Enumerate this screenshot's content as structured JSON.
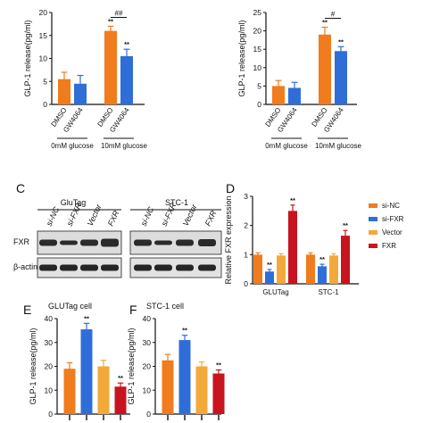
{
  "colors": {
    "orange": "#F07C1E",
    "blue": "#2F6ED8",
    "yellow": "#F2A93A",
    "red": "#C8141E",
    "dark": "#1a1a1a"
  },
  "chart_data": [
    {
      "id": "A",
      "type": "bar",
      "ylabel": "GLP-1 release(pg/ml)",
      "ylim": [
        0,
        20
      ],
      "yticks": [
        0,
        5,
        10,
        15,
        20
      ],
      "categories": [
        "DMSO",
        "GW4064",
        "DMSO",
        "GW4064"
      ],
      "groups": [
        "0mM glucose",
        "10mM glucose"
      ],
      "values": [
        5.5,
        4.5,
        16,
        10.5
      ],
      "errors": [
        1.5,
        1.8,
        1.0,
        1.5
      ],
      "bar_colors": [
        "orange",
        "blue",
        "orange",
        "blue"
      ],
      "sig": [
        "",
        "",
        "**",
        "**"
      ],
      "bracket_label": "##"
    },
    {
      "id": "B",
      "type": "bar",
      "ylabel": "GLP-1 release(pg/ml)",
      "ylim": [
        0,
        25
      ],
      "yticks": [
        0,
        5,
        10,
        15,
        20,
        25
      ],
      "categories": [
        "DMSO",
        "GW4064",
        "DMSO",
        "GW4064"
      ],
      "groups": [
        "0mM glucose",
        "10mM glucose"
      ],
      "values": [
        5,
        4.5,
        19,
        14.5
      ],
      "errors": [
        1.5,
        1.5,
        2.0,
        1.2
      ],
      "bar_colors": [
        "orange",
        "blue",
        "orange",
        "blue"
      ],
      "sig": [
        "",
        "",
        "**",
        "**"
      ],
      "bracket_label": "#"
    },
    {
      "id": "D",
      "type": "bar",
      "ylabel": "Relative FXR expression",
      "ylim": [
        0,
        3
      ],
      "yticks": [
        0,
        1,
        2,
        3
      ],
      "groups": [
        "GLUTag",
        "STC-1"
      ],
      "series": [
        {
          "name": "si-NC",
          "values": [
            1.0,
            1.0
          ],
          "errors": [
            0.06,
            0.06
          ],
          "color": "orange",
          "sig": [
            "",
            ""
          ]
        },
        {
          "name": "si-FXR",
          "values": [
            0.42,
            0.6
          ],
          "errors": [
            0.07,
            0.07
          ],
          "color": "blue",
          "sig": [
            "**",
            "**"
          ]
        },
        {
          "name": "Vector",
          "values": [
            0.97,
            0.97
          ],
          "errors": [
            0.06,
            0.06
          ],
          "color": "yellow",
          "sig": [
            "",
            ""
          ]
        },
        {
          "name": "FXR",
          "values": [
            2.5,
            1.65
          ],
          "errors": [
            0.2,
            0.18
          ],
          "color": "red",
          "sig": [
            "**",
            "**"
          ]
        }
      ],
      "legend": "right"
    },
    {
      "id": "E",
      "type": "bar",
      "title": "GLUTag cell",
      "ylabel": "GLP-1 release(pg/ml)",
      "ylim": [
        0,
        40
      ],
      "yticks": [
        0,
        10,
        20,
        30,
        40
      ],
      "values": [
        19,
        35.5,
        20,
        11.5
      ],
      "errors": [
        2.5,
        2.5,
        2.5,
        1.5
      ],
      "bar_colors": [
        "orange",
        "blue",
        "yellow",
        "red"
      ],
      "sig": [
        "",
        "**",
        "",
        "**"
      ]
    },
    {
      "id": "F",
      "type": "bar",
      "title": "STC-1 cell",
      "ylabel": "GLP-1 release(pg/ml)",
      "ylim": [
        0,
        40
      ],
      "yticks": [
        0,
        10,
        20,
        30,
        40
      ],
      "values": [
        22.5,
        31,
        20,
        17
      ],
      "errors": [
        2.5,
        2.0,
        1.8,
        1.5
      ],
      "bar_colors": [
        "orange",
        "blue",
        "yellow",
        "red"
      ],
      "sig": [
        "",
        "**",
        "",
        "**"
      ]
    }
  ],
  "blot": {
    "letter": "C",
    "cell_lines": [
      "GluTag",
      "STC-1"
    ],
    "lanes": [
      "si-NC",
      "si-FXR",
      "Vector",
      "FXR",
      "si-NC",
      "si-FXR",
      "Vector",
      "FXR"
    ],
    "rows": [
      "FXR",
      "β-actin"
    ]
  },
  "letters": {
    "D": "D",
    "E": "E",
    "F": "F"
  }
}
